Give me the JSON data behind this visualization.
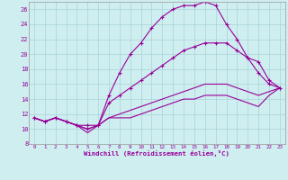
{
  "xlabel": "Windchill (Refroidissement éolien,°C)",
  "xlim": [
    -0.5,
    23.5
  ],
  "ylim": [
    8,
    27
  ],
  "xticks": [
    0,
    1,
    2,
    3,
    4,
    5,
    6,
    7,
    8,
    9,
    10,
    11,
    12,
    13,
    14,
    15,
    16,
    17,
    18,
    19,
    20,
    21,
    22,
    23
  ],
  "yticks": [
    8,
    10,
    12,
    14,
    16,
    18,
    20,
    22,
    24,
    26
  ],
  "bg_color": "#ceeef0",
  "line_color": "#990099",
  "grid_color": "#aad4d8",
  "x": [
    0,
    1,
    2,
    3,
    4,
    5,
    6,
    7,
    8,
    9,
    10,
    11,
    12,
    13,
    14,
    15,
    16,
    17,
    18,
    19,
    20,
    21,
    22,
    23
  ],
  "line1": [
    11.5,
    11.0,
    11.5,
    11.0,
    10.5,
    10.5,
    10.5,
    14.5,
    17.5,
    20.0,
    21.5,
    23.5,
    25.0,
    26.0,
    26.5,
    26.5,
    27.0,
    26.5,
    24.0,
    22.0,
    19.5,
    17.5,
    16.0,
    15.5
  ],
  "line2": [
    11.5,
    11.0,
    11.5,
    11.0,
    10.5,
    10.0,
    10.5,
    13.5,
    14.5,
    15.5,
    16.5,
    17.5,
    18.5,
    19.5,
    20.5,
    21.0,
    21.5,
    21.5,
    21.5,
    20.5,
    19.5,
    19.0,
    16.5,
    15.5
  ],
  "line3": [
    11.5,
    11.0,
    11.5,
    11.0,
    10.5,
    10.0,
    10.5,
    11.5,
    12.0,
    12.5,
    13.0,
    13.5,
    14.0,
    14.5,
    15.0,
    15.5,
    16.0,
    16.0,
    16.0,
    15.5,
    15.0,
    14.5,
    15.0,
    15.5
  ],
  "line4": [
    11.5,
    11.0,
    11.5,
    11.0,
    10.5,
    9.5,
    10.5,
    11.5,
    11.5,
    11.5,
    12.0,
    12.5,
    13.0,
    13.5,
    14.0,
    14.0,
    14.5,
    14.5,
    14.5,
    14.0,
    13.5,
    13.0,
    14.5,
    15.5
  ]
}
